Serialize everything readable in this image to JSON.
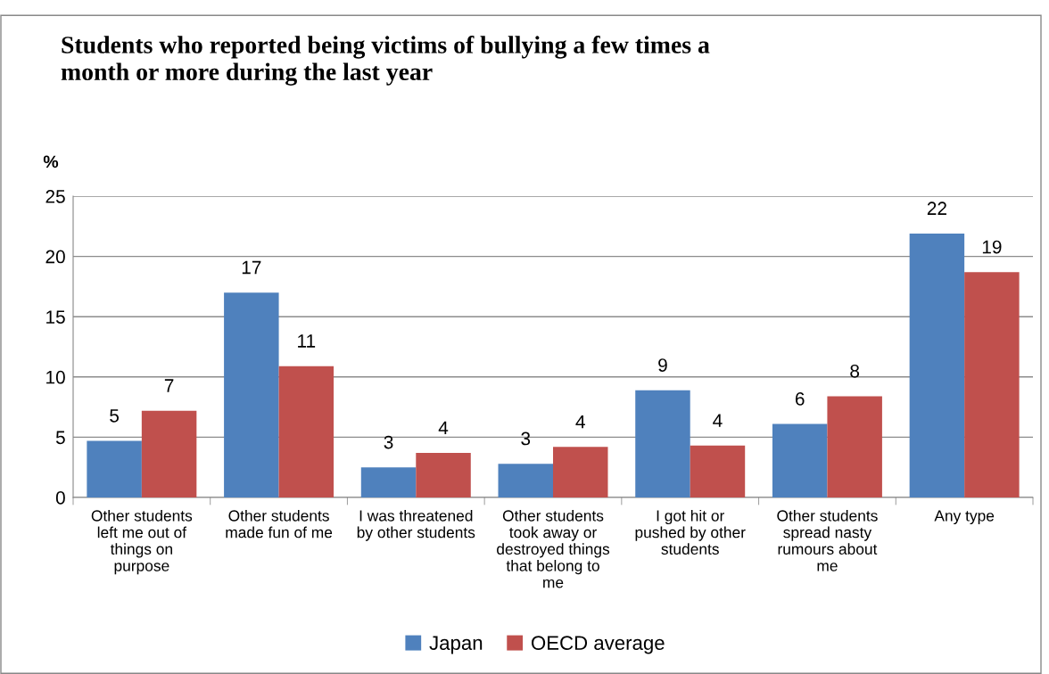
{
  "chart_data": {
    "type": "bar",
    "title": "Students who reported being victims of bullying a few times a\nmonth or more during the last year",
    "ylabel": "%",
    "categories": [
      "Other students\nleft me out of\nthings on\npurpose",
      "Other students\nmade fun of me",
      "I was threatened\nby other students",
      "Other students\ntook away or\ndestroyed things\nthat belong to\nme",
      "I got hit or\npushed by other\nstudents",
      "Other students\nspread nasty\nrumours about\nme",
      "Any type"
    ],
    "series": [
      {
        "name": "Japan",
        "color": "#4f81bd",
        "values": [
          4.7,
          17.0,
          2.5,
          2.8,
          8.9,
          6.1,
          21.9
        ],
        "value_labels": [
          "5",
          "17",
          "3",
          "3",
          "9",
          "6",
          "22"
        ]
      },
      {
        "name": "OECD average",
        "color": "#c0504d",
        "values": [
          7.2,
          10.9,
          3.7,
          4.2,
          4.3,
          8.4,
          18.7
        ],
        "value_labels": [
          "7",
          "11",
          "4",
          "4",
          "4",
          "8",
          "19"
        ]
      }
    ],
    "ylim": [
      0,
      25
    ],
    "yticks": [
      0,
      5,
      10,
      15,
      20,
      25
    ],
    "grid": "y",
    "legend": "bottom"
  }
}
